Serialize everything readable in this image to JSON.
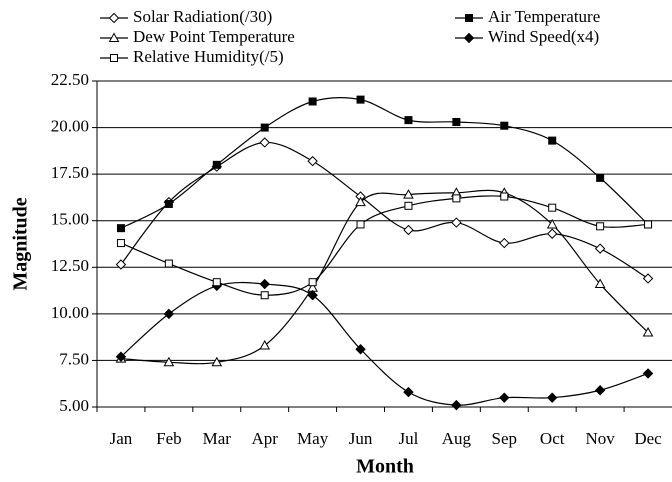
{
  "chart_data": {
    "type": "line",
    "x_label": "Month",
    "y_label": "Magnitude",
    "categories": [
      "Jan",
      "Feb",
      "Mar",
      "Apr",
      "May",
      "Jun",
      "Jul",
      "Aug",
      "Sep",
      "Oct",
      "Nov",
      "Dec"
    ],
    "series": [
      {
        "name": "Solar Radiation(/30)",
        "color": "#000000",
        "marker": "diamond-open",
        "values": [
          12.65,
          16.0,
          17.9,
          19.2,
          18.2,
          16.3,
          14.5,
          14.9,
          13.8,
          14.3,
          13.5,
          11.9
        ]
      },
      {
        "name": "Air Temperature",
        "color": "#000000",
        "marker": "square-filled",
        "values": [
          14.6,
          15.9,
          18.0,
          20.0,
          21.4,
          21.5,
          20.4,
          20.3,
          20.1,
          19.3,
          17.3,
          14.8
        ]
      },
      {
        "name": "Dew Point Temperature",
        "color": "#000000",
        "marker": "triangle-open",
        "values": [
          7.6,
          7.4,
          7.4,
          8.3,
          11.4,
          16.0,
          16.4,
          16.5,
          16.5,
          14.8,
          11.6,
          9.0
        ]
      },
      {
        "name": "Wind Speed(x4)",
        "color": "#000000",
        "marker": "diamond-filled",
        "values": [
          7.7,
          10.0,
          11.5,
          11.6,
          11.0,
          8.1,
          5.8,
          5.1,
          5.5,
          5.5,
          5.9,
          6.8
        ]
      },
      {
        "name": "Relative Humidity(/5)",
        "color": "#000000",
        "marker": "square-open",
        "values": [
          13.8,
          12.7,
          11.7,
          11.0,
          11.7,
          14.8,
          15.8,
          16.2,
          16.3,
          15.7,
          14.7,
          14.8
        ]
      }
    ],
    "ylim": [
      5,
      22.5
    ],
    "yticks": [
      {
        "value": 5,
        "label": "5.00"
      },
      {
        "value": 7.5,
        "label": "7.50"
      },
      {
        "value": 10,
        "label": "10.00"
      },
      {
        "value": 12.5,
        "label": "12.50"
      },
      {
        "value": 15,
        "label": "15.00"
      },
      {
        "value": 17.5,
        "label": "17.50"
      },
      {
        "value": 20,
        "label": "20.00"
      },
      {
        "value": 22.5,
        "label": "22.50"
      }
    ],
    "grid": true,
    "legend": "top",
    "smooth": true
  }
}
